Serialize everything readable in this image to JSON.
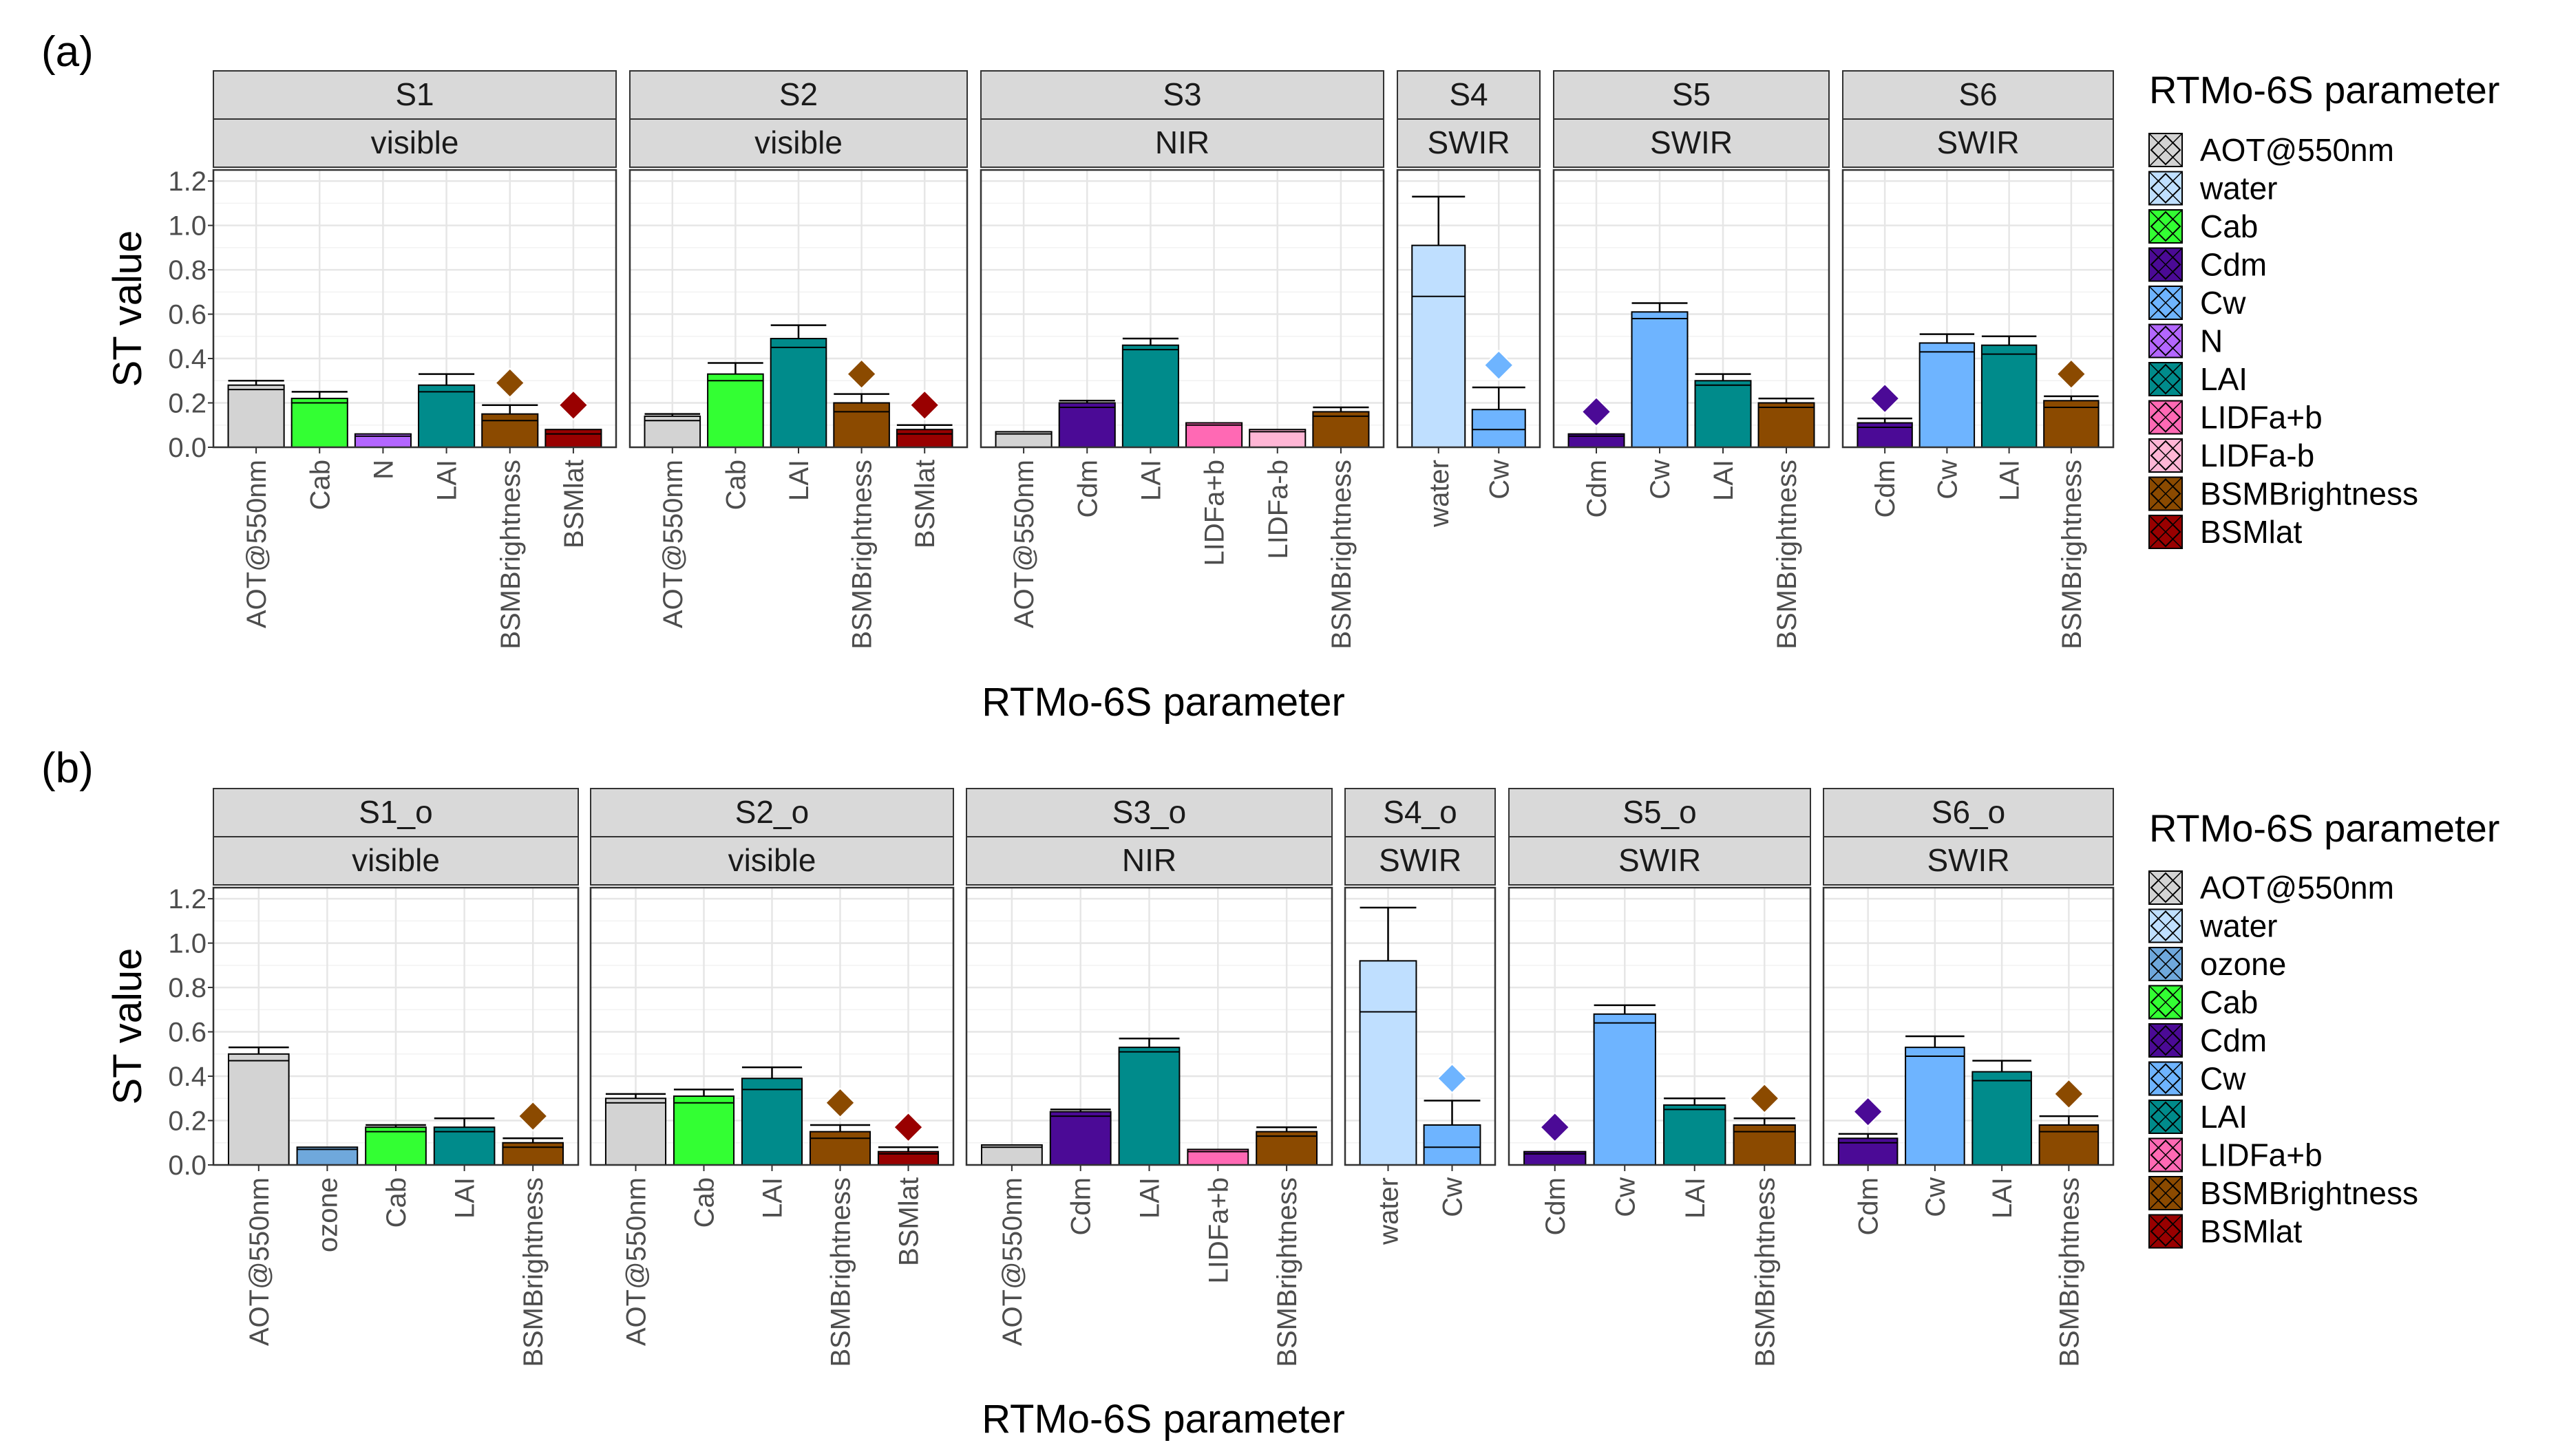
{
  "colors": {
    "AOT@550nm": "#d3d3d3",
    "water": "#bfdfff",
    "ozone": "#6fa8dc",
    "Cab": "#33ff33",
    "Cdm": "#4b0a96",
    "Cw": "#6eb4ff",
    "N": "#b366ff",
    "LAI": "#008b8b",
    "LIDFa+b": "#ff69b4",
    "LIDFa-b": "#ffb6d5",
    "BSMBrightness": "#8b4a00",
    "BSMlat": "#990000"
  },
  "chart_data": [
    {
      "type": "bar",
      "label": "(a)",
      "ylabel": "ST value",
      "xlabel": "RTMo-6S parameter",
      "ylim": [
        0,
        1.25
      ],
      "yticks": [
        "0.0",
        "0.2",
        "0.4",
        "0.6",
        "0.8",
        "1.0",
        "1.2"
      ],
      "legend_title": "RTMo-6S parameter",
      "legend_items": [
        "AOT@550nm",
        "water",
        "Cab",
        "Cdm",
        "Cw",
        "N",
        "LAI",
        "LIDFa+b",
        "LIDFa-b",
        "BSMBrightness",
        "BSMlat"
      ],
      "facets": [
        {
          "name": "S1",
          "band": "visible",
          "categories": [
            "AOT@550nm",
            "Cab",
            "N",
            "LAI",
            "BSMBrightness",
            "BSMlat"
          ],
          "values": [
            0.28,
            0.22,
            0.06,
            0.28,
            0.15,
            0.08
          ],
          "inner": [
            0.26,
            0.2,
            0.05,
            0.25,
            0.12,
            0.06
          ],
          "error_top": [
            0.3,
            0.25,
            null,
            0.33,
            0.19,
            null
          ],
          "first_order": [
            null,
            null,
            null,
            null,
            0.29,
            0.19
          ]
        },
        {
          "name": "S2",
          "band": "visible",
          "categories": [
            "AOT@550nm",
            "Cab",
            "LAI",
            "BSMBrightness",
            "BSMlat"
          ],
          "values": [
            0.14,
            0.33,
            0.49,
            0.2,
            0.08
          ],
          "inner": [
            0.12,
            0.3,
            0.45,
            0.16,
            0.06
          ],
          "error_top": [
            0.15,
            0.38,
            0.55,
            0.24,
            0.1
          ],
          "first_order": [
            null,
            null,
            null,
            0.33,
            0.19
          ]
        },
        {
          "name": "S3",
          "band": "NIR",
          "categories": [
            "AOT@550nm",
            "Cdm",
            "LAI",
            "LIDFa+b",
            "LIDFa-b",
            "BSMBrightness"
          ],
          "values": [
            0.07,
            0.2,
            0.46,
            0.11,
            0.08,
            0.16
          ],
          "inner": [
            0.06,
            0.18,
            0.44,
            0.1,
            0.07,
            0.14
          ],
          "error_top": [
            null,
            0.21,
            0.49,
            null,
            null,
            0.18
          ],
          "first_order": [
            null,
            null,
            null,
            null,
            null,
            null
          ]
        },
        {
          "name": "S4",
          "band": "SWIR",
          "categories": [
            "water",
            "Cw"
          ],
          "values": [
            0.91,
            0.17
          ],
          "inner": [
            0.68,
            0.08
          ],
          "error_top": [
            1.13,
            0.27
          ],
          "first_order": [
            null,
            0.37
          ]
        },
        {
          "name": "S5",
          "band": "SWIR",
          "categories": [
            "Cdm",
            "Cw",
            "LAI",
            "BSMBrightness"
          ],
          "values": [
            0.06,
            0.61,
            0.3,
            0.2
          ],
          "inner": [
            0.05,
            0.58,
            0.28,
            0.18
          ],
          "error_top": [
            null,
            0.65,
            0.33,
            0.22
          ],
          "first_order": [
            0.16,
            null,
            null,
            null
          ]
        },
        {
          "name": "S6",
          "band": "SWIR",
          "categories": [
            "Cdm",
            "Cw",
            "LAI",
            "BSMBrightness"
          ],
          "values": [
            0.11,
            0.47,
            0.46,
            0.21
          ],
          "inner": [
            0.09,
            0.43,
            0.42,
            0.18
          ],
          "error_top": [
            0.13,
            0.51,
            0.5,
            0.23
          ],
          "first_order": [
            0.22,
            null,
            null,
            0.33
          ]
        }
      ]
    },
    {
      "type": "bar",
      "label": "(b)",
      "ylabel": "ST value",
      "xlabel": "RTMo-6S parameter",
      "ylim": [
        0,
        1.25
      ],
      "yticks": [
        "0.0",
        "0.2",
        "0.4",
        "0.6",
        "0.8",
        "1.0",
        "1.2"
      ],
      "legend_title": "RTMo-6S parameter",
      "legend_items": [
        "AOT@550nm",
        "water",
        "ozone",
        "Cab",
        "Cdm",
        "Cw",
        "LAI",
        "LIDFa+b",
        "BSMBrightness",
        "BSMlat"
      ],
      "facets": [
        {
          "name": "S1_o",
          "band": "visible",
          "categories": [
            "AOT@550nm",
            "ozone",
            "Cab",
            "LAI",
            "BSMBrightness"
          ],
          "values": [
            0.5,
            0.08,
            0.17,
            0.17,
            0.1
          ],
          "inner": [
            0.47,
            0.07,
            0.15,
            0.15,
            0.08
          ],
          "error_top": [
            0.53,
            null,
            0.18,
            0.21,
            0.12
          ],
          "first_order": [
            null,
            null,
            null,
            null,
            0.22
          ]
        },
        {
          "name": "S2_o",
          "band": "visible",
          "categories": [
            "AOT@550nm",
            "Cab",
            "LAI",
            "BSMBrightness",
            "BSMlat"
          ],
          "values": [
            0.3,
            0.31,
            0.39,
            0.15,
            0.06
          ],
          "inner": [
            0.28,
            0.28,
            0.34,
            0.12,
            0.05
          ],
          "error_top": [
            0.32,
            0.34,
            0.44,
            0.18,
            0.08
          ],
          "first_order": [
            null,
            null,
            null,
            0.28,
            0.17
          ]
        },
        {
          "name": "S3_o",
          "band": "NIR",
          "categories": [
            "AOT@550nm",
            "Cdm",
            "LAI",
            "LIDFa+b",
            "BSMBrightness"
          ],
          "values": [
            0.09,
            0.24,
            0.53,
            0.07,
            0.15
          ],
          "inner": [
            0.08,
            0.22,
            0.51,
            0.06,
            0.13
          ],
          "error_top": [
            null,
            0.25,
            0.57,
            null,
            0.17
          ],
          "first_order": [
            null,
            null,
            null,
            null,
            null
          ]
        },
        {
          "name": "S4_o",
          "band": "SWIR",
          "categories": [
            "water",
            "Cw"
          ],
          "values": [
            0.92,
            0.18
          ],
          "inner": [
            0.69,
            0.08
          ],
          "error_top": [
            1.16,
            0.29
          ],
          "first_order": [
            null,
            0.39
          ]
        },
        {
          "name": "S5_o",
          "band": "SWIR",
          "categories": [
            "Cdm",
            "Cw",
            "LAI",
            "BSMBrightness"
          ],
          "values": [
            0.06,
            0.68,
            0.27,
            0.18
          ],
          "inner": [
            0.05,
            0.64,
            0.25,
            0.15
          ],
          "error_top": [
            null,
            0.72,
            0.3,
            0.21
          ],
          "first_order": [
            0.17,
            null,
            null,
            0.3
          ]
        },
        {
          "name": "S6_o",
          "band": "SWIR",
          "categories": [
            "Cdm",
            "Cw",
            "LAI",
            "BSMBrightness"
          ],
          "values": [
            0.12,
            0.53,
            0.42,
            0.18
          ],
          "inner": [
            0.1,
            0.49,
            0.38,
            0.15
          ],
          "error_top": [
            0.14,
            0.58,
            0.47,
            0.22
          ],
          "first_order": [
            0.24,
            null,
            null,
            0.32
          ]
        }
      ]
    }
  ]
}
